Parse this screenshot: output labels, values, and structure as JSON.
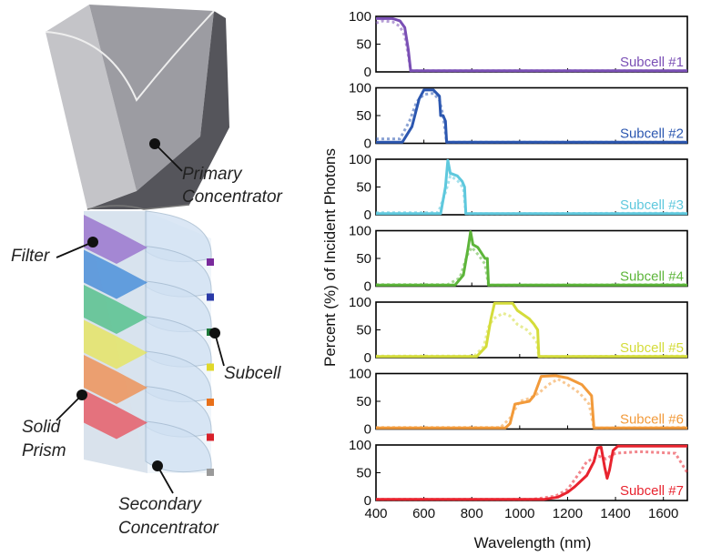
{
  "diagram": {
    "labels": {
      "primary_line1": "Primary",
      "primary_line2": "Concentrator",
      "filter": "Filter",
      "subcell": "Subcell",
      "prism_line1": "Solid",
      "prism_line2": "Prism",
      "secondary_line1": "Secondary",
      "secondary_line2": "Concentrator"
    },
    "filter_colors": [
      "#8e5fc7",
      "#2f7fd6",
      "#3dbb7a",
      "#e8e64a",
      "#f2833c",
      "#e8434e"
    ],
    "cell_colors": [
      "#7a2a9c",
      "#2a3aa8",
      "#1f7a3a",
      "#e0d82a",
      "#e8701a",
      "#d8202a",
      "#9a9a9a"
    ]
  },
  "chart_data": {
    "type": "line",
    "xlabel": "Wavelength (nm)",
    "ylabel": "Percent (%) of Incident Photons",
    "xlim": [
      400,
      1700
    ],
    "ylim": [
      0,
      100
    ],
    "xticks": [
      400,
      600,
      800,
      1000,
      1200,
      1400,
      1600
    ],
    "yticks": [
      0,
      50,
      100
    ],
    "grid": false,
    "panels": [
      {
        "label": "Subcell #1",
        "color": "#7a4fb5",
        "solid": [
          [
            400,
            96
          ],
          [
            470,
            96
          ],
          [
            500,
            92
          ],
          [
            520,
            80
          ],
          [
            535,
            40
          ],
          [
            545,
            2
          ],
          [
            1700,
            2
          ]
        ],
        "dotted": [
          [
            400,
            88
          ],
          [
            430,
            92
          ],
          [
            470,
            90
          ],
          [
            500,
            82
          ],
          [
            520,
            65
          ],
          [
            535,
            30
          ],
          [
            545,
            2
          ],
          [
            1700,
            2
          ]
        ]
      },
      {
        "label": "Subcell #2",
        "color": "#2c57b0",
        "solid": [
          [
            400,
            2
          ],
          [
            510,
            2
          ],
          [
            550,
            30
          ],
          [
            580,
            80
          ],
          [
            600,
            96
          ],
          [
            640,
            96
          ],
          [
            665,
            85
          ],
          [
            670,
            50
          ],
          [
            680,
            50
          ],
          [
            690,
            40
          ],
          [
            695,
            2
          ],
          [
            1700,
            2
          ]
        ],
        "dotted": [
          [
            400,
            8
          ],
          [
            500,
            8
          ],
          [
            540,
            40
          ],
          [
            570,
            75
          ],
          [
            600,
            88
          ],
          [
            640,
            90
          ],
          [
            665,
            78
          ],
          [
            680,
            50
          ],
          [
            695,
            2
          ],
          [
            1700,
            2
          ]
        ]
      },
      {
        "label": "Subcell #3",
        "color": "#5ec8dd",
        "solid": [
          [
            400,
            2
          ],
          [
            670,
            2
          ],
          [
            690,
            50
          ],
          [
            700,
            98
          ],
          [
            710,
            75
          ],
          [
            740,
            70
          ],
          [
            760,
            60
          ],
          [
            770,
            50
          ],
          [
            775,
            2
          ],
          [
            1700,
            2
          ]
        ],
        "dotted": [
          [
            400,
            4
          ],
          [
            660,
            4
          ],
          [
            690,
            40
          ],
          [
            710,
            70
          ],
          [
            740,
            62
          ],
          [
            765,
            48
          ],
          [
            775,
            2
          ],
          [
            1700,
            3
          ]
        ]
      },
      {
        "label": "Subcell #4",
        "color": "#5db53a",
        "solid": [
          [
            400,
            2
          ],
          [
            730,
            2
          ],
          [
            765,
            20
          ],
          [
            785,
            70
          ],
          [
            795,
            98
          ],
          [
            805,
            75
          ],
          [
            825,
            70
          ],
          [
            840,
            60
          ],
          [
            855,
            50
          ],
          [
            865,
            50
          ],
          [
            870,
            2
          ],
          [
            1700,
            2
          ]
        ],
        "dotted": [
          [
            400,
            3
          ],
          [
            700,
            3
          ],
          [
            750,
            15
          ],
          [
            780,
            55
          ],
          [
            800,
            70
          ],
          [
            830,
            55
          ],
          [
            855,
            40
          ],
          [
            870,
            2
          ],
          [
            1700,
            3
          ]
        ]
      },
      {
        "label": "Subcell #5",
        "color": "#d4dc3a",
        "solid": [
          [
            400,
            2
          ],
          [
            820,
            2
          ],
          [
            860,
            20
          ],
          [
            880,
            70
          ],
          [
            895,
            98
          ],
          [
            970,
            98
          ],
          [
            990,
            85
          ],
          [
            1040,
            70
          ],
          [
            1060,
            60
          ],
          [
            1075,
            50
          ],
          [
            1080,
            2
          ],
          [
            1700,
            2
          ]
        ],
        "dotted": [
          [
            400,
            3
          ],
          [
            810,
            3
          ],
          [
            850,
            20
          ],
          [
            870,
            55
          ],
          [
            890,
            70
          ],
          [
            930,
            80
          ],
          [
            960,
            75
          ],
          [
            990,
            60
          ],
          [
            1030,
            50
          ],
          [
            1070,
            30
          ],
          [
            1080,
            2
          ],
          [
            1700,
            3
          ]
        ]
      },
      {
        "label": "Subcell #6",
        "color": "#f29a3a",
        "solid": [
          [
            400,
            2
          ],
          [
            940,
            2
          ],
          [
            960,
            10
          ],
          [
            980,
            45
          ],
          [
            1040,
            50
          ],
          [
            1060,
            60
          ],
          [
            1090,
            95
          ],
          [
            1150,
            96
          ],
          [
            1200,
            92
          ],
          [
            1260,
            80
          ],
          [
            1300,
            60
          ],
          [
            1310,
            2
          ],
          [
            1700,
            2
          ]
        ],
        "dotted": [
          [
            400,
            3
          ],
          [
            920,
            3
          ],
          [
            960,
            20
          ],
          [
            1000,
            50
          ],
          [
            1040,
            55
          ],
          [
            1080,
            65
          ],
          [
            1120,
            80
          ],
          [
            1160,
            90
          ],
          [
            1200,
            80
          ],
          [
            1250,
            65
          ],
          [
            1290,
            45
          ],
          [
            1310,
            2
          ],
          [
            1700,
            3
          ]
        ]
      },
      {
        "label": "Subcell #7",
        "color": "#e8232e",
        "solid": [
          [
            400,
            2
          ],
          [
            1100,
            2
          ],
          [
            1160,
            6
          ],
          [
            1200,
            15
          ],
          [
            1230,
            25
          ],
          [
            1280,
            45
          ],
          [
            1310,
            70
          ],
          [
            1325,
            95
          ],
          [
            1340,
            96
          ],
          [
            1355,
            60
          ],
          [
            1365,
            40
          ],
          [
            1375,
            55
          ],
          [
            1390,
            90
          ],
          [
            1410,
            98
          ],
          [
            1700,
            98
          ]
        ],
        "dotted": [
          [
            400,
            2
          ],
          [
            1050,
            2
          ],
          [
            1100,
            5
          ],
          [
            1150,
            8
          ],
          [
            1200,
            20
          ],
          [
            1250,
            50
          ],
          [
            1280,
            70
          ],
          [
            1330,
            80
          ],
          [
            1360,
            75
          ],
          [
            1400,
            85
          ],
          [
            1500,
            88
          ],
          [
            1650,
            85
          ],
          [
            1700,
            50
          ]
        ]
      }
    ]
  }
}
